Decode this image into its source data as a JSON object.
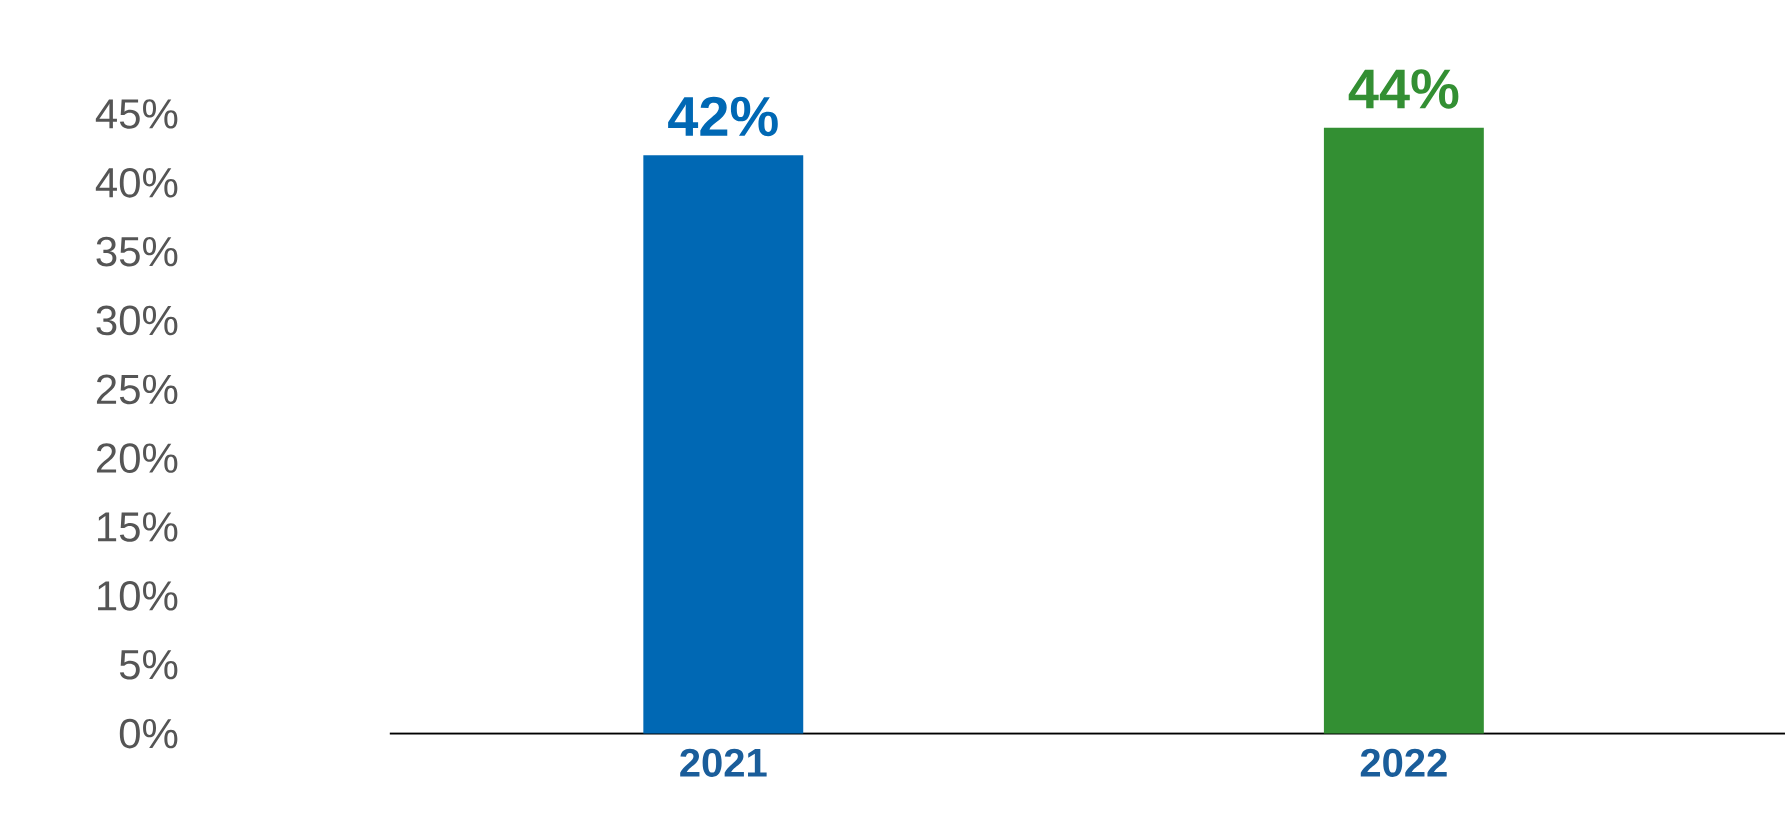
{
  "chart_data": {
    "type": "bar",
    "categories": [
      "2021",
      "2022"
    ],
    "values": [
      42,
      44
    ],
    "colors": [
      "#0068b4",
      "#338f33"
    ],
    "value_labels": [
      "42%",
      "44%"
    ],
    "ylim": [
      0,
      45
    ],
    "yticks": [
      {
        "value": 0,
        "label": "0%"
      },
      {
        "value": 5,
        "label": "5%"
      },
      {
        "value": 10,
        "label": "10%"
      },
      {
        "value": 15,
        "label": "15%"
      },
      {
        "value": 20,
        "label": "20%"
      },
      {
        "value": 25,
        "label": "25%"
      },
      {
        "value": 30,
        "label": "30%"
      },
      {
        "value": 35,
        "label": "35%"
      },
      {
        "value": 40,
        "label": "40%"
      },
      {
        "value": 45,
        "label": "45%"
      }
    ]
  }
}
